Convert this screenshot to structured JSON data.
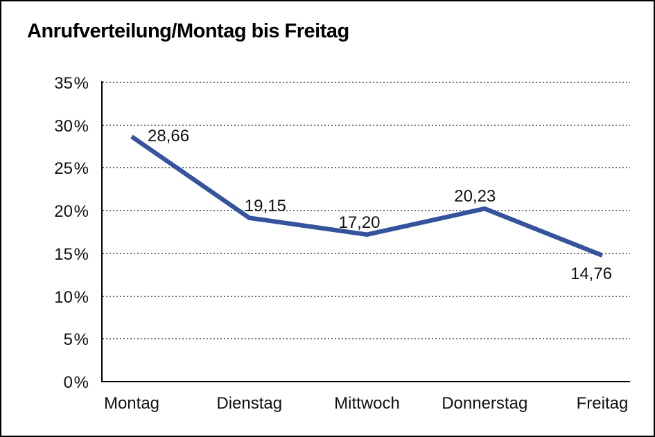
{
  "title": "Anrufverteilung/Montag bis Freitag",
  "chart_data": {
    "type": "line",
    "title": "Anrufverteilung/Montag bis Freitag",
    "categories": [
      "Montag",
      "Dienstag",
      "Mittwoch",
      "Donnerstag",
      "Freitag"
    ],
    "values": [
      28.66,
      19.15,
      17.2,
      20.23,
      14.76
    ],
    "point_labels": [
      "28,66",
      "19,15",
      "17,20",
      "20,23",
      "14,76"
    ],
    "xlabel": "",
    "ylabel": "",
    "ylim": [
      0,
      35
    ],
    "y_ticks": [
      35,
      30,
      25,
      20,
      15,
      10,
      5,
      0
    ],
    "y_tick_labels": [
      "35 %",
      "30 %",
      "25 %",
      "20 %",
      "15 %",
      "10 %",
      "5 %",
      "0 %"
    ],
    "grid": "horizontal-dotted",
    "legend_position": "none",
    "line_color": "#35549D",
    "axis_color": "#000000",
    "label_color": "#111111"
  }
}
